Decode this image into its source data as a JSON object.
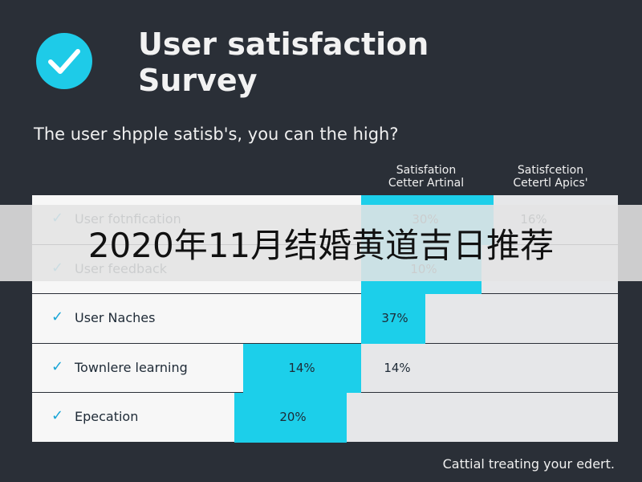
{
  "header": {
    "title_lines": [
      "User satisfaction",
      "Survey"
    ],
    "subtitle": "The user shpple satisb's, you can the high?"
  },
  "table": {
    "columns": [
      "Satisfation\nCetter Artinal",
      "Satisfcetion\nCetertl Apics'"
    ],
    "rows": [
      {
        "label": "User fotnfication",
        "cells": [
          "30%",
          "16%"
        ]
      },
      {
        "label": "User feedback",
        "cells": [
          "10%"
        ]
      },
      {
        "label": "User Naches",
        "cells": [
          "37%"
        ]
      },
      {
        "label": "Townlere learning",
        "cells": [
          "14%",
          "14%"
        ]
      },
      {
        "label": "Epecation",
        "cells": [
          "20%"
        ]
      }
    ]
  },
  "footer": "Cattial treating your edert.",
  "banner": "2020年11月结婚黄道吉日推荐"
}
